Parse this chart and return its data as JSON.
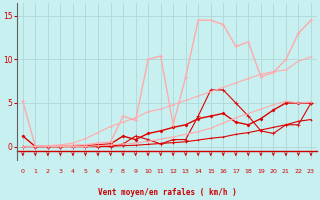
{
  "bg_color": "#c8f0f0",
  "grid_color": "#b0d8d8",
  "xlabel": "Vent moyen/en rafales ( km/h )",
  "xlabel_color": "#cc0000",
  "tick_color": "#cc0000",
  "yticks": [
    0,
    5,
    10,
    15
  ],
  "xticks": [
    0,
    1,
    2,
    3,
    4,
    5,
    6,
    7,
    8,
    9,
    10,
    11,
    12,
    13,
    14,
    15,
    16,
    17,
    18,
    19,
    20,
    21,
    22,
    23
  ],
  "xlim": [
    -0.5,
    23.5
  ],
  "ylim": [
    -1.5,
    16.5
  ],
  "arrow_color": "#cc0000",
  "lines": [
    {
      "x": [
        0,
        1,
        2,
        3,
        4,
        5,
        6,
        7,
        8,
        9,
        10,
        11,
        12,
        13,
        14,
        15,
        16,
        17,
        18,
        19,
        20,
        21,
        22,
        23
      ],
      "y": [
        1.2,
        0.0,
        0.0,
        0.0,
        0.1,
        0.1,
        0.2,
        0.3,
        1.2,
        0.8,
        1.5,
        1.8,
        2.2,
        2.5,
        3.2,
        3.5,
        3.8,
        2.8,
        2.5,
        3.2,
        4.2,
        5.0,
        5.0,
        5.0
      ],
      "color": "#dd0000",
      "lw": 1.0,
      "marker": "D",
      "ms": 1.5
    },
    {
      "x": [
        0,
        1,
        2,
        3,
        4,
        5,
        6,
        7,
        8,
        9,
        10,
        11,
        12,
        13,
        14,
        15,
        16,
        17,
        18,
        19,
        20,
        21,
        22,
        23
      ],
      "y": [
        5.2,
        0.0,
        0.1,
        0.1,
        0.15,
        0.2,
        0.4,
        0.5,
        3.5,
        3.0,
        10.0,
        10.4,
        2.5,
        8.0,
        14.5,
        14.5,
        14.0,
        11.5,
        12.0,
        8.0,
        8.5,
        10.0,
        13.0,
        14.5
      ],
      "color": "#ffaaaa",
      "lw": 1.0,
      "marker": "+",
      "ms": 2.5
    },
    {
      "x": [
        0,
        1,
        2,
        3,
        4,
        5,
        6,
        7,
        8,
        9,
        10,
        11,
        12,
        13,
        14,
        15,
        16,
        17,
        18,
        19,
        20,
        21,
        22,
        23
      ],
      "y": [
        0.0,
        0.0,
        0.0,
        0.0,
        0.0,
        0.0,
        0.0,
        0.0,
        0.3,
        1.2,
        0.8,
        0.3,
        0.8,
        0.8,
        3.5,
        6.5,
        6.5,
        5.0,
        3.5,
        1.8,
        1.5,
        2.5,
        2.5,
        5.0
      ],
      "color": "#dd0000",
      "lw": 0.8,
      "marker": "+",
      "ms": 2.5
    },
    {
      "x": [
        0,
        1,
        2,
        3,
        4,
        5,
        6,
        7,
        8,
        9,
        10,
        11,
        12,
        13,
        14,
        15,
        16,
        17,
        18,
        19,
        20,
        21,
        22,
        23
      ],
      "y": [
        0.0,
        0.0,
        0.0,
        0.0,
        0.0,
        0.0,
        0.0,
        0.05,
        0.1,
        0.15,
        0.25,
        0.35,
        0.45,
        0.55,
        0.75,
        0.95,
        1.1,
        1.4,
        1.6,
        1.9,
        2.2,
        2.5,
        2.9,
        3.1
      ],
      "color": "#dd0000",
      "lw": 0.8,
      "marker": "+",
      "ms": 2.0
    },
    {
      "x": [
        0,
        1,
        2,
        3,
        4,
        5,
        6,
        7,
        8,
        9,
        10,
        11,
        12,
        13,
        14,
        15,
        16,
        17,
        18,
        19,
        20,
        21,
        22,
        23
      ],
      "y": [
        0.0,
        0.0,
        0.0,
        0.0,
        0.0,
        0.0,
        0.1,
        0.2,
        0.3,
        0.4,
        0.6,
        0.85,
        1.1,
        1.4,
        1.7,
        2.1,
        2.7,
        3.3,
        3.8,
        4.3,
        4.8,
        5.2,
        5.0,
        5.1
      ],
      "color": "#ffaaaa",
      "lw": 0.8,
      "marker": "+",
      "ms": 2.0
    },
    {
      "x": [
        0,
        1,
        2,
        3,
        4,
        5,
        6,
        7,
        8,
        9,
        10,
        11,
        12,
        13,
        14,
        15,
        16,
        17,
        18,
        19,
        20,
        21,
        22,
        23
      ],
      "y": [
        0.0,
        0.05,
        0.1,
        0.2,
        0.4,
        0.9,
        1.6,
        2.3,
        2.8,
        3.3,
        4.0,
        4.3,
        4.8,
        5.3,
        5.8,
        6.3,
        6.8,
        7.3,
        7.8,
        8.3,
        8.6,
        8.8,
        9.8,
        10.3
      ],
      "color": "#ffaaaa",
      "lw": 0.8,
      "marker": "+",
      "ms": 2.0
    }
  ]
}
